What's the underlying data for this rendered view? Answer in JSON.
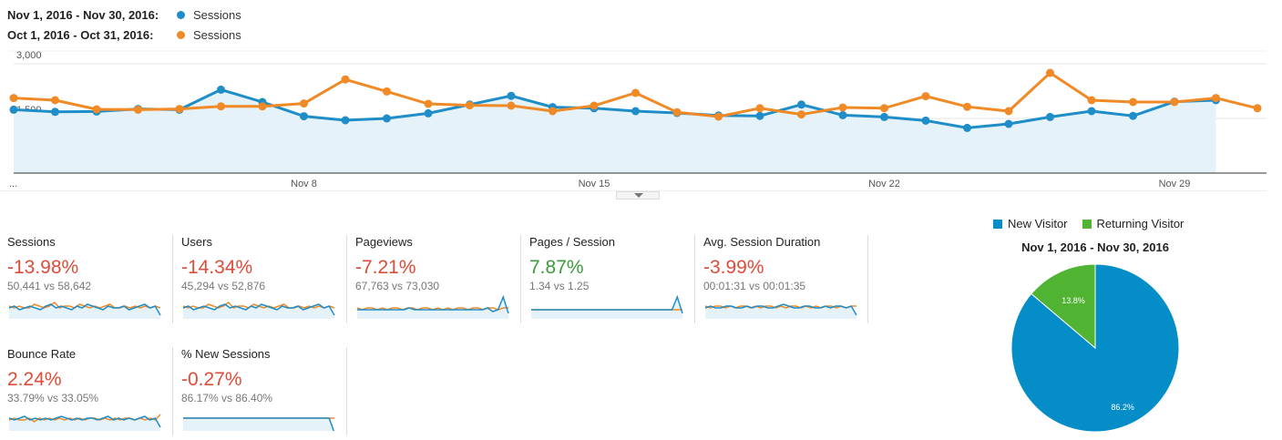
{
  "legend": {
    "current_range": "Nov 1, 2016 - Nov 30, 2016:",
    "previous_range": "Oct 1, 2016 - Oct 31, 2016:",
    "series_label": "Sessions"
  },
  "colors": {
    "current": "#1f8dc7",
    "previous": "#ef8a26",
    "area": "#e6f2fa",
    "new_visitor": "#058dc7",
    "returning_visitor": "#50b432",
    "negative": "#dd4b39",
    "positive": "#3a9c3a"
  },
  "chart_data": [
    {
      "type": "line",
      "title": "",
      "ylabel": "",
      "ylim": [
        0,
        3300
      ],
      "y_ticks": [
        "3,000",
        "1,500"
      ],
      "y_tick_values": [
        3000,
        1500
      ],
      "x_ticks": [
        "...",
        "Nov 8",
        "Nov 15",
        "Nov 22",
        "Nov 29"
      ],
      "x_tick_days": [
        1,
        8,
        15,
        22,
        29
      ],
      "series": [
        {
          "name": "Sessions",
          "range": "Nov 1, 2016 - Nov 30, 2016",
          "days": [
            1,
            2,
            3,
            4,
            5,
            6,
            7,
            8,
            9,
            10,
            11,
            12,
            13,
            14,
            15,
            16,
            17,
            18,
            19,
            20,
            21,
            22,
            23,
            24,
            25,
            26,
            27,
            28,
            29,
            30
          ],
          "values": [
            1740,
            1680,
            1690,
            1760,
            1740,
            2290,
            1950,
            1560,
            1450,
            1500,
            1640,
            1880,
            2120,
            1810,
            1780,
            1700,
            1650,
            1580,
            1570,
            1880,
            1590,
            1540,
            1440,
            1240,
            1350,
            1540,
            1700,
            1570,
            1960,
            2000
          ]
        },
        {
          "name": "Sessions",
          "range": "Oct 1, 2016 - Oct 31, 2016",
          "days": [
            1,
            2,
            3,
            4,
            5,
            6,
            7,
            8,
            9,
            10,
            11,
            12,
            13,
            14,
            15,
            16,
            17,
            18,
            19,
            20,
            21,
            22,
            23,
            24,
            25,
            26,
            27,
            28,
            29,
            30,
            31
          ],
          "values": [
            2060,
            2000,
            1750,
            1740,
            1760,
            1830,
            1830,
            1910,
            2570,
            2240,
            1900,
            1860,
            1850,
            1700,
            1850,
            2200,
            1670,
            1550,
            1780,
            1610,
            1800,
            1780,
            2110,
            1820,
            1700,
            2750,
            2000,
            1950,
            1950,
            2060,
            1780
          ]
        }
      ]
    },
    {
      "type": "pie",
      "title": "Nov 1, 2016 - Nov 30, 2016",
      "slices": [
        {
          "label": "New Visitor",
          "value": 86.2,
          "display": "86.2%"
        },
        {
          "label": "Returning Visitor",
          "value": 13.8,
          "display": "13.8%"
        }
      ]
    }
  ],
  "metrics": [
    {
      "label": "Sessions",
      "value": "-13.98%",
      "compare": "50,441 vs 58,642",
      "sign": "neg",
      "cur": [
        3,
        4,
        2,
        3,
        4,
        3,
        2,
        4,
        5,
        3,
        4,
        3,
        2,
        4,
        3,
        5,
        4,
        3,
        2,
        4,
        3,
        3,
        4,
        2,
        3,
        4,
        5,
        3,
        4,
        -1
      ],
      "prev": [
        4,
        3,
        4,
        3,
        3,
        5,
        4,
        3,
        4,
        6,
        3,
        4,
        4,
        3,
        5,
        4,
        3,
        4,
        3,
        4,
        5,
        3,
        3,
        4,
        3,
        4,
        3,
        4,
        3,
        4,
        3
      ]
    },
    {
      "label": "Users",
      "value": "-14.34%",
      "compare": "45,294 vs 52,876",
      "sign": "neg",
      "cur": [
        3,
        4,
        2,
        3,
        4,
        3,
        2,
        4,
        5,
        3,
        4,
        3,
        2,
        4,
        3,
        5,
        4,
        3,
        2,
        4,
        3,
        3,
        4,
        2,
        3,
        4,
        5,
        3,
        4,
        -1
      ],
      "prev": [
        4,
        3,
        4,
        3,
        3,
        5,
        4,
        3,
        4,
        6,
        3,
        4,
        4,
        3,
        5,
        4,
        3,
        4,
        3,
        4,
        5,
        3,
        3,
        4,
        3,
        4,
        3,
        4,
        3,
        4,
        3
      ]
    },
    {
      "label": "Pageviews",
      "value": "-7.21%",
      "compare": "67,763 vs 73,030",
      "sign": "neg",
      "cur": [
        2,
        2,
        2,
        2,
        2,
        2,
        2,
        2,
        2,
        2,
        3,
        2,
        2,
        2,
        2,
        2,
        2,
        2,
        2,
        2,
        2,
        2,
        2,
        2,
        2,
        3,
        1,
        2,
        9,
        0
      ],
      "prev": [
        3,
        2,
        3,
        3,
        2,
        3,
        2,
        3,
        3,
        2,
        3,
        3,
        2,
        3,
        3,
        2,
        3,
        2,
        3,
        2,
        3,
        3,
        2,
        3,
        3,
        2,
        3,
        3,
        2,
        3,
        3
      ]
    },
    {
      "label": "Pages / Session",
      "value": "7.87%",
      "compare": "1.34 vs 1.25",
      "sign": "pos",
      "cur": [
        2,
        2,
        2,
        2,
        2,
        2,
        2,
        2,
        2,
        2,
        2,
        2,
        2,
        2,
        2,
        2,
        2,
        2,
        2,
        2,
        2,
        2,
        2,
        2,
        2,
        2,
        2,
        2,
        9,
        0
      ],
      "prev": [
        2,
        2,
        2,
        2,
        2,
        2,
        2,
        2,
        2,
        2,
        2,
        2,
        2,
        2,
        2,
        2,
        2,
        2,
        2,
        2,
        2,
        2,
        2,
        2,
        2,
        2,
        2,
        2,
        2,
        2,
        2
      ]
    },
    {
      "label": "Avg. Session Duration",
      "value": "-3.99%",
      "compare": "00:01:31 vs 00:01:35",
      "sign": "neg",
      "cur": [
        3,
        4,
        3,
        3,
        4,
        4,
        3,
        3,
        4,
        3,
        4,
        4,
        3,
        3,
        4,
        5,
        4,
        3,
        3,
        4,
        4,
        3,
        3,
        4,
        3,
        4,
        4,
        3,
        4,
        -1
      ],
      "prev": [
        4,
        3,
        4,
        4,
        3,
        4,
        3,
        4,
        4,
        3,
        4,
        3,
        4,
        4,
        3,
        4,
        3,
        4,
        4,
        3,
        4,
        3,
        4,
        3,
        4,
        4,
        3,
        4,
        3,
        4,
        4
      ]
    },
    {
      "label": "Bounce Rate",
      "value": "2.24%",
      "compare": "33.79% vs 33.05%",
      "sign": "neg",
      "cur": [
        4,
        3,
        4,
        5,
        3,
        4,
        3,
        4,
        3,
        4,
        5,
        4,
        3,
        4,
        3,
        4,
        4,
        3,
        4,
        5,
        3,
        4,
        3,
        4,
        3,
        4,
        5,
        3,
        4,
        -1
      ],
      "prev": [
        3,
        4,
        3,
        3,
        4,
        2,
        4,
        3,
        4,
        3,
        4,
        3,
        4,
        3,
        4,
        3,
        4,
        4,
        3,
        4,
        3,
        4,
        3,
        4,
        4,
        3,
        4,
        3,
        4,
        3,
        6
      ]
    },
    {
      "label": "% New Sessions",
      "value": "-0.27%",
      "compare": "86.17% vs 86.40%",
      "sign": "neg",
      "cur": [
        4,
        4,
        4,
        4,
        4,
        4,
        4,
        4,
        4,
        4,
        4,
        4,
        4,
        4,
        4,
        4,
        4,
        4,
        4,
        4,
        4,
        4,
        4,
        4,
        4,
        4,
        4,
        4,
        4,
        -4
      ],
      "prev": [
        4,
        4,
        4,
        4,
        4,
        4,
        4,
        4,
        4,
        4,
        4,
        4,
        4,
        4,
        4,
        4,
        4,
        4,
        4,
        4,
        4,
        4,
        4,
        4,
        4,
        4,
        4,
        4,
        4,
        4,
        4
      ]
    }
  ],
  "pie_legend": {
    "new_label": "New Visitor",
    "returning_label": "Returning Visitor"
  }
}
